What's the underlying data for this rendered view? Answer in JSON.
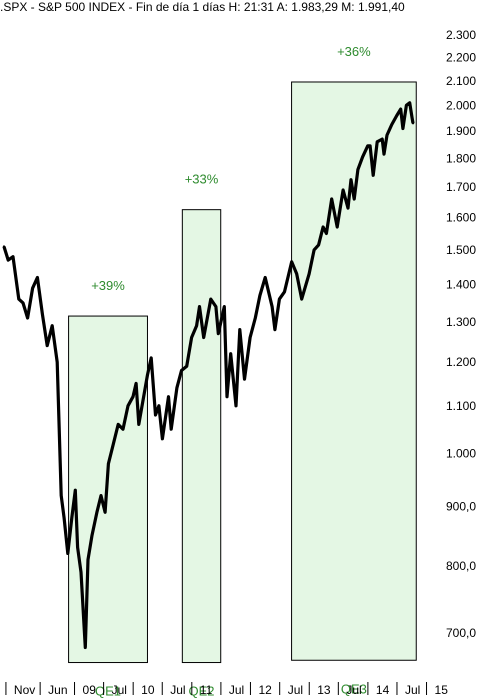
{
  "header": {
    "title": ".SPX - S&P 500 INDEX - Fin de día 1 días H: 21:31 A: 1.983,29 M: 1.991,40"
  },
  "colors": {
    "line": "#000000",
    "box_fill": "#e4f7e4",
    "box_stroke": "#000000",
    "annotation": "#2e8b2e"
  },
  "chart_data": {
    "type": "line",
    "title": ".SPX - S&P 500 INDEX - Fin de día 1 días H: 21:31 A: 1.983,29 M: 1.991,40",
    "y_scale": "log",
    "ylim": [
      640,
      2370
    ],
    "xlim": [
      "2007-10-20",
      "2014-10-15"
    ],
    "y_ticks": [
      {
        "value": 2300,
        "label": "2.300"
      },
      {
        "value": 2200,
        "label": "2.200"
      },
      {
        "value": 2100,
        "label": "2.100"
      },
      {
        "value": 2000,
        "label": "2.000"
      },
      {
        "value": 1900,
        "label": "1.900"
      },
      {
        "value": 1800,
        "label": "1.800"
      },
      {
        "value": 1700,
        "label": "1.700"
      },
      {
        "value": 1600,
        "label": "1.600"
      },
      {
        "value": 1500,
        "label": "1.500"
      },
      {
        "value": 1400,
        "label": "1.400"
      },
      {
        "value": 1300,
        "label": "1.300"
      },
      {
        "value": 1200,
        "label": "1.200"
      },
      {
        "value": 1100,
        "label": "1.100"
      },
      {
        "value": 1000,
        "label": "1.000"
      },
      {
        "value": 900,
        "label": "900,0"
      },
      {
        "value": 800,
        "label": "800,0"
      },
      {
        "value": 700,
        "label": "700,0"
      }
    ],
    "x_ticks": [
      {
        "date": "2007-11-01",
        "label": "Nov"
      },
      {
        "date": "2008-06-01",
        "label": "Jun"
      },
      {
        "date": "2009-01-01",
        "label": "09"
      },
      {
        "date": "2009-07-01",
        "label": "Jul"
      },
      {
        "date": "2010-01-01",
        "label": "10"
      },
      {
        "date": "2010-07-01",
        "label": "Jul"
      },
      {
        "date": "2011-01-01",
        "label": "11"
      },
      {
        "date": "2011-07-01",
        "label": "Jul"
      },
      {
        "date": "2012-01-01",
        "label": "12"
      },
      {
        "date": "2012-07-01",
        "label": "Jul"
      },
      {
        "date": "2013-01-01",
        "label": "13"
      },
      {
        "date": "2013-07-01",
        "label": "Jul"
      },
      {
        "date": "2014-01-01",
        "label": "14"
      },
      {
        "date": "2014-07-01",
        "label": "Jul"
      },
      {
        "date": "2015-01-01",
        "label": "15"
      }
    ],
    "series": [
      {
        "x": [
          "2007-10-20",
          "2007-11-15",
          "2007-12-15",
          "2008-01-20",
          "2008-02-15",
          "2008-03-15",
          "2008-04-15",
          "2008-05-15",
          "2008-06-15",
          "2008-07-15",
          "2008-08-15",
          "2008-09-15",
          "2008-10-10",
          "2008-10-28",
          "2008-11-20",
          "2008-12-15",
          "2009-01-06",
          "2009-01-20",
          "2009-02-10",
          "2009-03-09",
          "2009-03-26",
          "2009-04-20",
          "2009-05-20",
          "2009-06-15",
          "2009-07-10",
          "2009-07-31",
          "2009-08-31",
          "2009-09-30",
          "2009-10-30",
          "2009-11-30",
          "2009-12-31",
          "2010-01-19",
          "2010-02-05",
          "2010-03-31",
          "2010-04-23",
          "2010-05-20",
          "2010-06-10",
          "2010-07-02",
          "2010-08-09",
          "2010-08-26",
          "2010-09-30",
          "2010-10-29",
          "2010-11-30",
          "2010-12-31",
          "2011-01-31",
          "2011-02-18",
          "2011-03-16",
          "2011-04-29",
          "2011-05-31",
          "2011-06-15",
          "2011-07-22",
          "2011-08-08",
          "2011-08-31",
          "2011-10-03",
          "2011-10-27",
          "2011-11-25",
          "2011-12-30",
          "2012-01-31",
          "2012-02-29",
          "2012-04-02",
          "2012-05-15",
          "2012-06-01",
          "2012-06-29",
          "2012-07-31",
          "2012-09-14",
          "2012-10-15",
          "2012-11-15",
          "2012-12-31",
          "2013-01-31",
          "2013-02-28",
          "2013-03-28",
          "2013-04-18",
          "2013-05-21",
          "2013-06-24",
          "2013-07-31",
          "2013-08-30",
          "2013-09-18",
          "2013-10-08",
          "2013-10-31",
          "2013-11-29",
          "2013-12-31",
          "2014-01-15",
          "2014-02-03",
          "2014-02-28",
          "2014-03-31",
          "2014-04-11",
          "2014-04-30",
          "2014-05-30",
          "2014-06-30",
          "2014-07-24",
          "2014-08-07",
          "2014-08-29",
          "2014-09-18",
          "2014-10-03",
          "2014-10-09"
        ],
        "values": [
          1510,
          1470,
          1480,
          1360,
          1350,
          1310,
          1390,
          1420,
          1320,
          1240,
          1290,
          1200,
          920,
          880,
          820,
          880,
          930,
          830,
          790,
          680,
          810,
          850,
          890,
          920,
          890,
          980,
          1020,
          1060,
          1050,
          1100,
          1120,
          1150,
          1060,
          1170,
          1210,
          1080,
          1100,
          1030,
          1120,
          1050,
          1140,
          1180,
          1190,
          1260,
          1290,
          1340,
          1260,
          1360,
          1340,
          1270,
          1340,
          1120,
          1220,
          1100,
          1280,
          1160,
          1260,
          1310,
          1370,
          1420,
          1340,
          1280,
          1360,
          1380,
          1465,
          1430,
          1360,
          1430,
          1500,
          1515,
          1570,
          1550,
          1660,
          1570,
          1690,
          1630,
          1725,
          1660,
          1760,
          1805,
          1845,
          1845,
          1740,
          1860,
          1870,
          1815,
          1885,
          1925,
          1960,
          1985,
          1910,
          2000,
          2010,
          1950,
          1930
        ]
      }
    ],
    "annotations": [
      {
        "label": "+39%",
        "box_label": "QE1",
        "x_start": "2008-11-25",
        "x_end": "2010-03-31",
        "y_low": 660,
        "y_high": 1315
      },
      {
        "label": "+33%",
        "box_label": "QE2",
        "x_start": "2010-11-03",
        "x_end": "2011-06-30",
        "y_low": 660,
        "y_high": 1625
      },
      {
        "label": "+36%",
        "box_label": "QE3",
        "x_start": "2012-09-13",
        "x_end": "2014-10-29",
        "y_low": 663,
        "y_high": 2095
      }
    ]
  }
}
